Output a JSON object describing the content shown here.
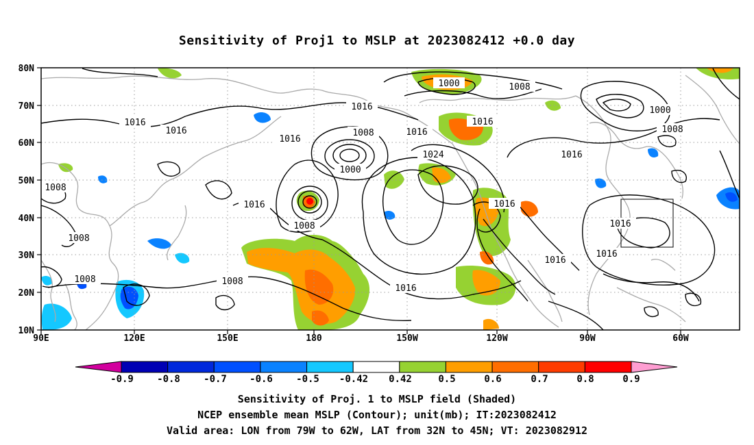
{
  "title": "Sensitivity of Proj1 to MSLP at 2023082412 +0.0 day",
  "map": {
    "lat_labels": [
      "80N",
      "70N",
      "60N",
      "50N",
      "40N",
      "30N",
      "20N",
      "10N"
    ],
    "lon_labels": [
      "90E",
      "120E",
      "150E",
      "180",
      "150W",
      "120W",
      "90W",
      "60W"
    ],
    "contour_labels": [
      "1016",
      "1016",
      "1016",
      "1016",
      "1016",
      "1016",
      "1016",
      "1016",
      "1016",
      "1016",
      "1016",
      "1016",
      "1016",
      "1000",
      "1000",
      "1000",
      "1008",
      "1008",
      "1008",
      "1008",
      "1008",
      "1008",
      "1008",
      "1008",
      "1024"
    ],
    "contour_line_color": "#000000",
    "coastline_color": "#a9a9a9",
    "grid_color": "#9a9a9a",
    "valid_box_color": "#000000"
  },
  "colorbar": {
    "labels": [
      "-0.9",
      "-0.8",
      "-0.7",
      "-0.6",
      "-0.5",
      "-0.42",
      "0.42",
      "0.5",
      "0.6",
      "0.7",
      "0.8",
      "0.9"
    ],
    "colors": [
      "#0000b4",
      "#0028dc",
      "#0050ff",
      "#0a82ff",
      "#14c8ff",
      "#ffffff",
      "#96d232",
      "#ff9e00",
      "#ff6e00",
      "#ff3c00",
      "#ff0000"
    ],
    "min_color": "#d2009e",
    "max_color": "#ff9ed2"
  },
  "footer": {
    "line1": "Sensitivity of Proj. 1 to MSLP field (Shaded)",
    "line2": "NCEP ensemble mean MSLP (Contour); unit(mb); IT:2023082412",
    "line3": "Valid area: LON from 79W to 62W, LAT from 32N to 45N; VT: 2023082912"
  }
}
